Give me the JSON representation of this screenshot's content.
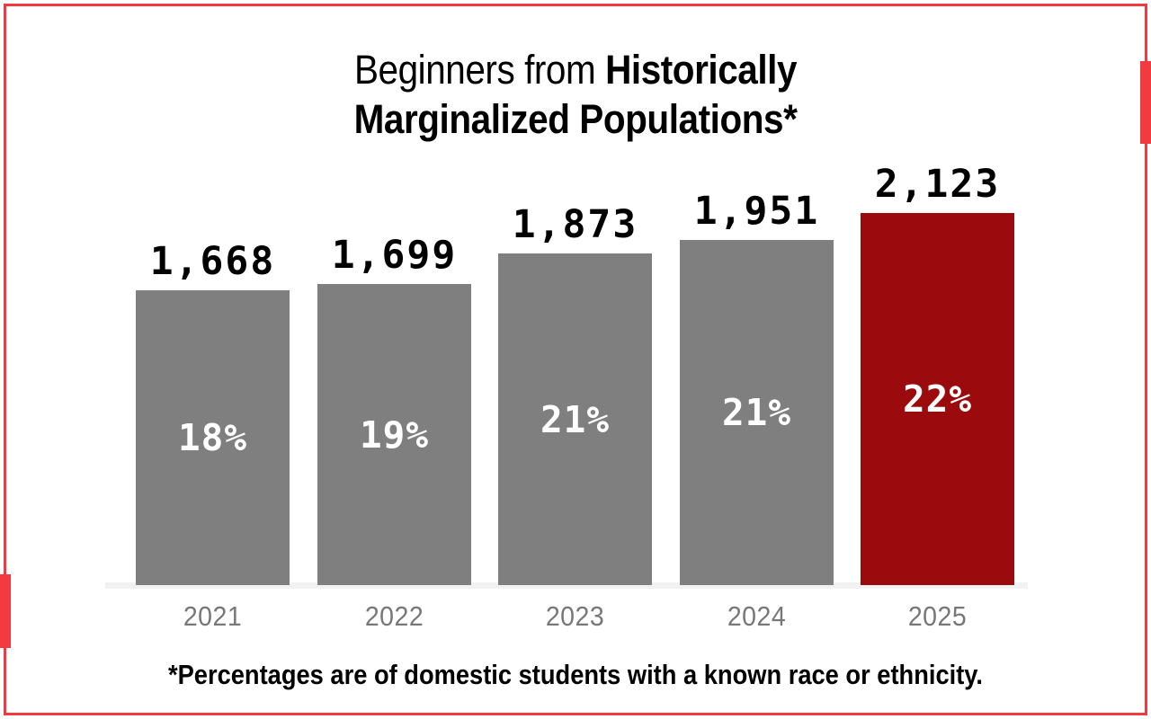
{
  "page": {
    "background": "#FFFFFF",
    "frame_color": "#F23B40"
  },
  "title": {
    "prefix": "Beginners from",
    "bold_line1": "Historically",
    "bold_line2": "Marginalized Populations*"
  },
  "footnote": "*Percentages are of domestic students with a known race or ethnicity.",
  "chart_data": {
    "type": "bar",
    "title": "Beginners from Historically Marginalized Populations*",
    "categories": [
      "2021",
      "2022",
      "2023",
      "2024",
      "2025"
    ],
    "values": [
      1668,
      1699,
      1873,
      1951,
      2123
    ],
    "value_labels": [
      "1,668",
      "1,699",
      "1,873",
      "1,951",
      "2,123"
    ],
    "pct_labels": [
      "18%",
      "19%",
      "21%",
      "21%",
      "22%"
    ],
    "bar_colors": [
      "#7F7F7F",
      "#7F7F7F",
      "#7F7F7F",
      "#7F7F7F",
      "#9B0A0C"
    ],
    "highlight_category": "2025",
    "xlabel": "",
    "ylabel": "",
    "ylim": [
      0,
      2123
    ],
    "grid": false,
    "legend": false,
    "annotation": "*Percentages are of domestic students with a known race or ethnicity."
  }
}
